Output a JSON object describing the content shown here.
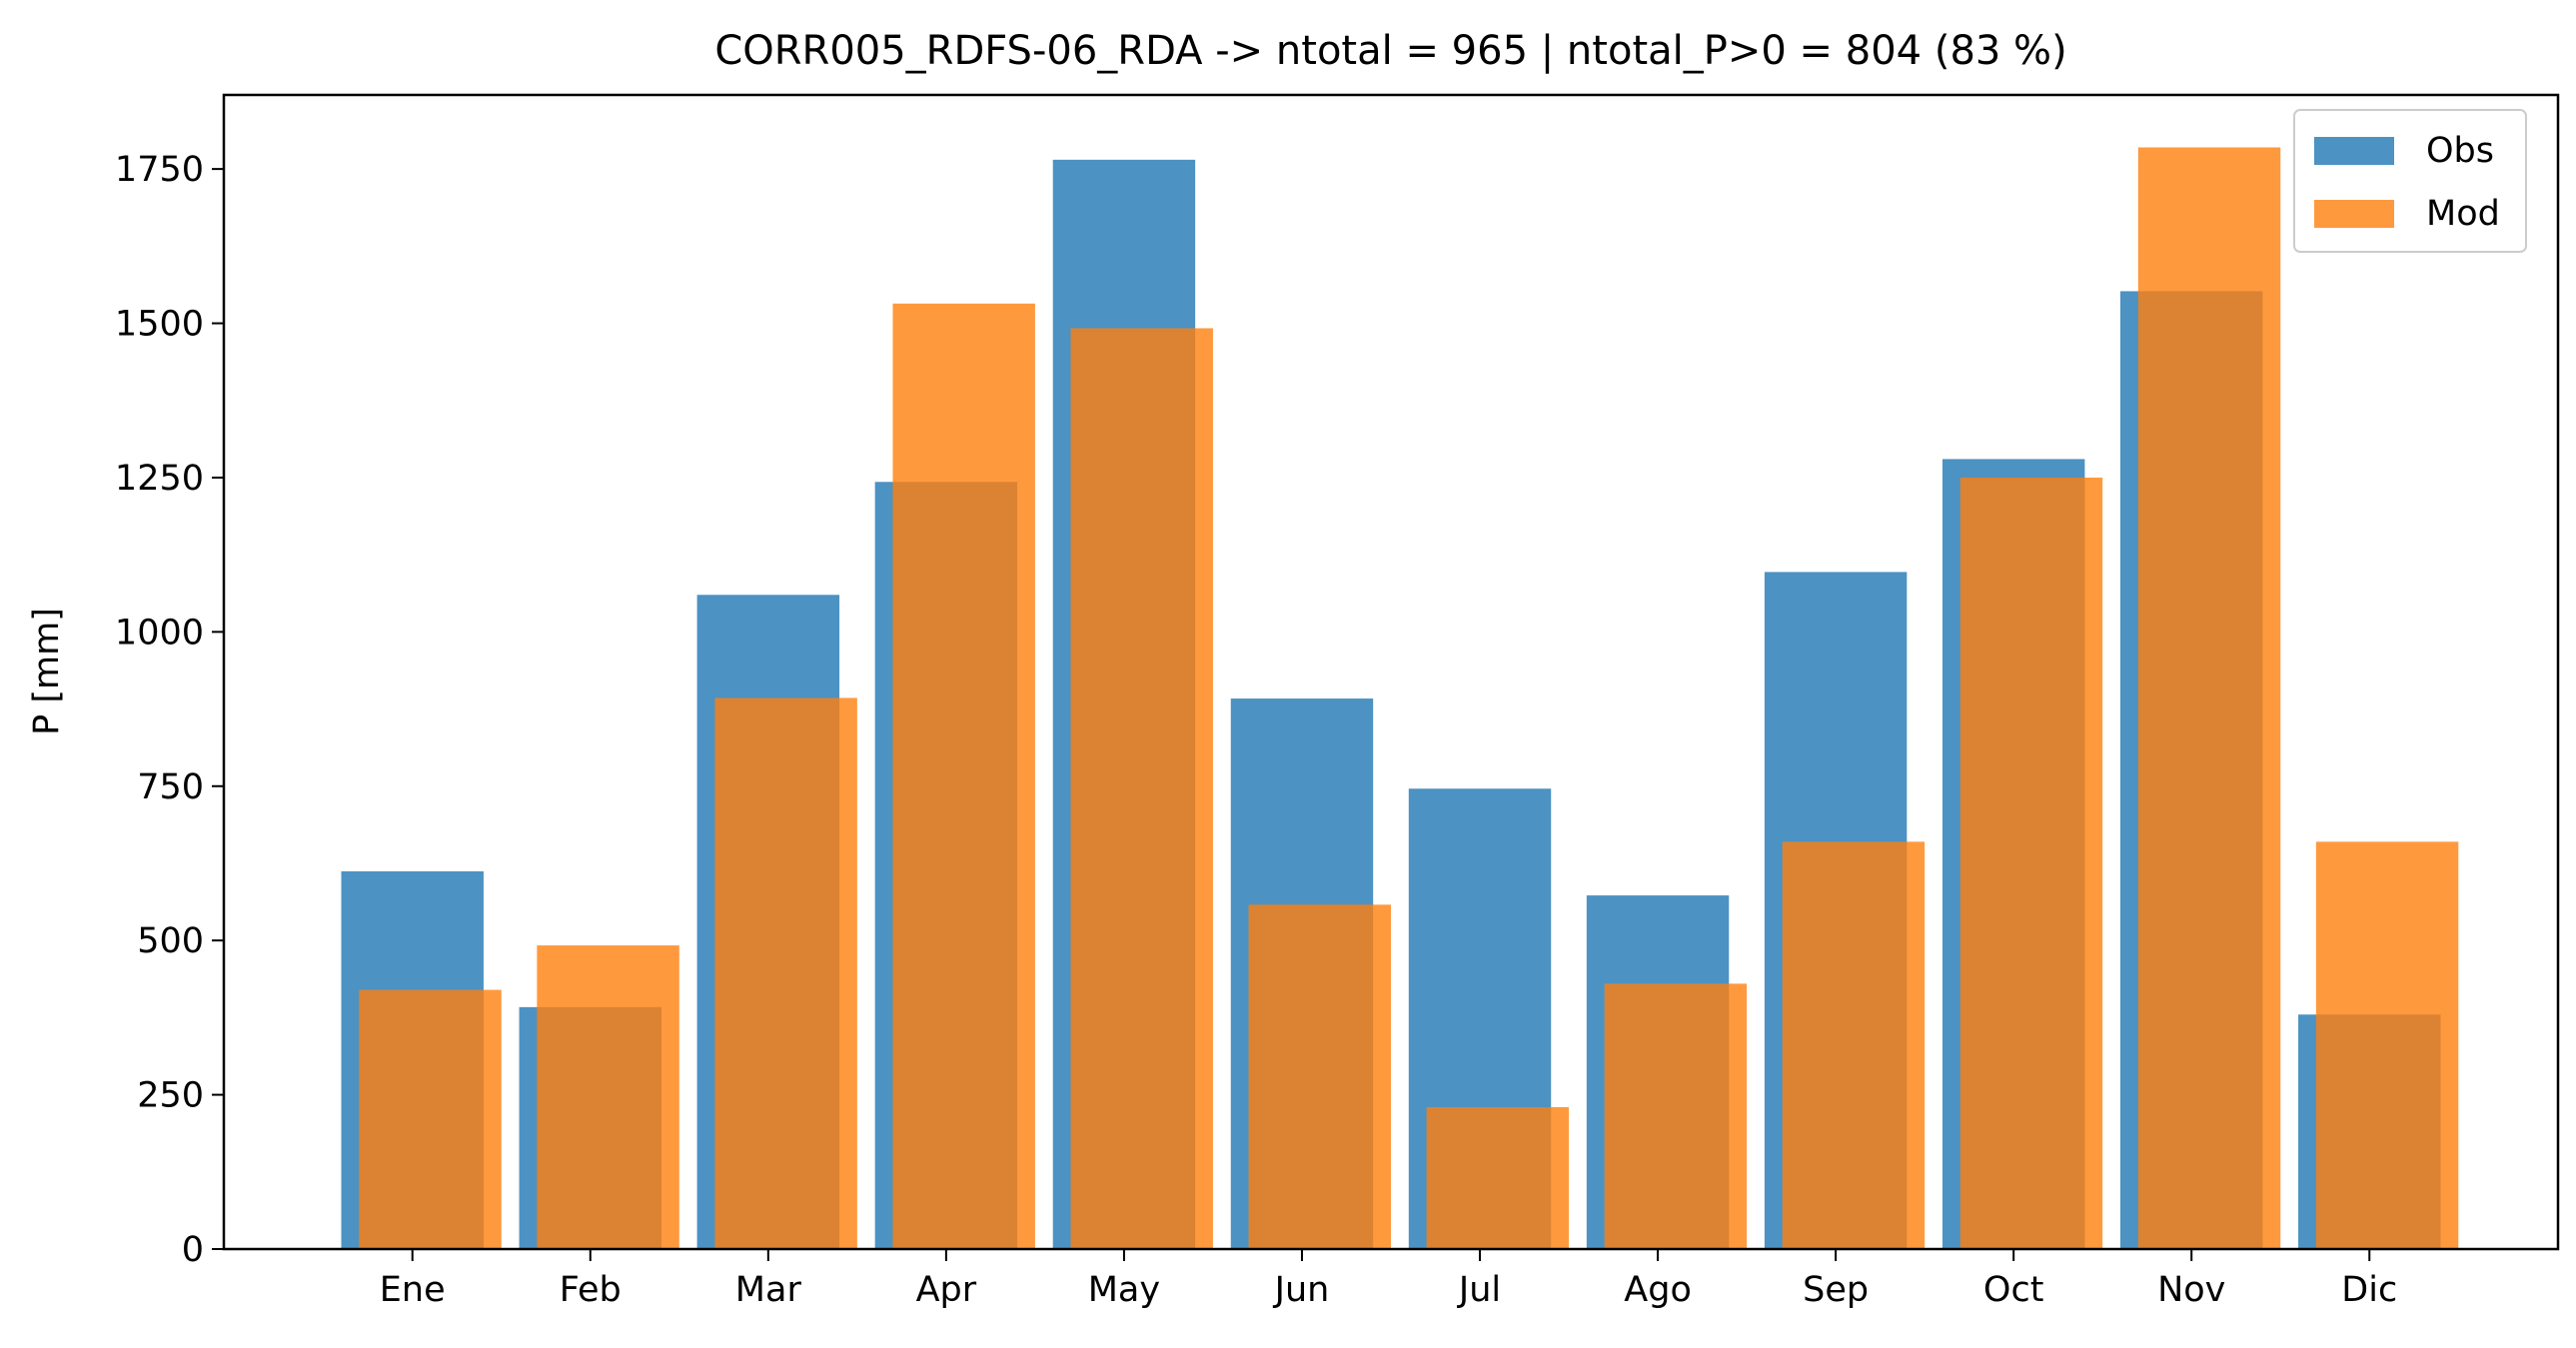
{
  "chart_data": {
    "type": "bar",
    "title": "CORR005_RDFS-06_RDA -> ntotal = 965 | ntotal_P>0 = 804 (83 %)",
    "xlabel": "",
    "ylabel": "P [mm]",
    "ylim": [
      0,
      1870
    ],
    "yticks": [
      0,
      250,
      500,
      750,
      1000,
      1250,
      1500,
      1750
    ],
    "yticklabels": [
      "0",
      "250",
      "500",
      "750",
      "1000",
      "1250",
      "1500",
      "1750"
    ],
    "categories": [
      "Ene",
      "Feb",
      "Mar",
      "Apr",
      "May",
      "Jun",
      "Jul",
      "Ago",
      "Sep",
      "Oct",
      "Nov",
      "Dic"
    ],
    "series": [
      {
        "name": "Obs",
        "color": "#1f77b4",
        "opacity": 0.8,
        "values": [
          612,
          392,
          1060,
          1243,
          1765,
          892,
          746,
          573,
          1097,
          1280,
          1552,
          380
        ]
      },
      {
        "name": "Mod",
        "color": "#ff7f0e",
        "opacity": 0.8,
        "values": [
          420,
          492,
          893,
          1532,
          1492,
          558,
          230,
          430,
          660,
          1250,
          1785,
          660
        ]
      }
    ],
    "grid": false,
    "legend": "upper-right"
  }
}
